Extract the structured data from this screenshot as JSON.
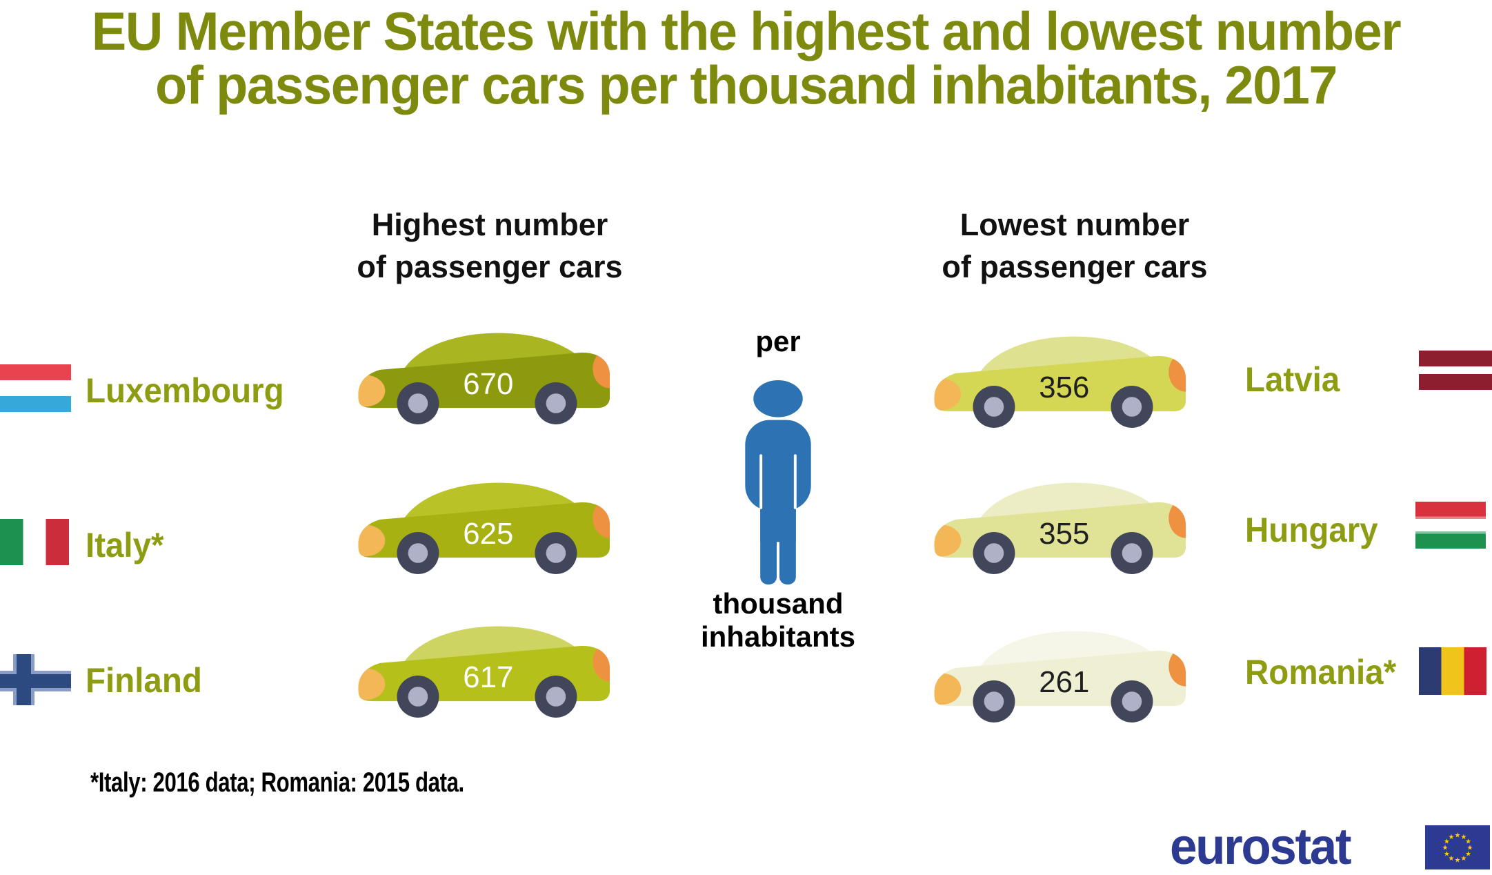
{
  "title": {
    "lines": [
      "EU Member States with the highest and lowest number",
      "of passenger cars per thousand inhabitants, 2017"
    ],
    "color": "#7d8a0e"
  },
  "columns": {
    "highest": {
      "heading_lines": [
        "Highest number",
        "of passenger cars"
      ]
    },
    "lowest": {
      "heading_lines": [
        "Lowest number",
        "of passenger cars"
      ]
    }
  },
  "center": {
    "top_label": "per",
    "bottom_lines": [
      "thousand",
      "inhabitants"
    ],
    "person_color": "#2d72b2"
  },
  "car_style": {
    "wheel": "#41465b",
    "hub": "#aeb1c7",
    "front_light": "#f4b757",
    "rear_light": "#ee9140"
  },
  "highest_countries": [
    {
      "name": "Luxembourg",
      "label": "Luxembourg",
      "value": "670",
      "car": {
        "body": "#8d9a0e",
        "roof": "#a9b521",
        "number_color": "#ffffff"
      },
      "flag": {
        "type": "h",
        "stripes": [
          "#e8434e",
          "#ffffff",
          "#37a8da"
        ],
        "weights": [
          1,
          1,
          1
        ]
      }
    },
    {
      "name": "Italy",
      "label": "Italy*",
      "value": "625",
      "car": {
        "body": "#a7b112",
        "roof": "#b9c226",
        "number_color": "#ffffff"
      },
      "flag": {
        "type": "v",
        "stripes": [
          "#1d9150",
          "#ffffff",
          "#cc2d3b"
        ],
        "weights": [
          1,
          1,
          1
        ]
      }
    },
    {
      "name": "Finland",
      "label": "Finland",
      "value": "617",
      "car": {
        "body": "#b6c01a",
        "roof": "#cdd462",
        "number_color": "#ffffff"
      },
      "flag": {
        "type": "cross",
        "field": "#ffffff",
        "cross": "#2c4a80",
        "shadow": "#8b9cc7"
      }
    }
  ],
  "lowest_countries": [
    {
      "name": "Latvia",
      "label": "Latvia",
      "value": "356",
      "car": {
        "body": "#d3d754",
        "roof": "#dee18f",
        "number_color": "#1f1f1f"
      },
      "flag": {
        "type": "h",
        "stripes": [
          "#8c1e2f",
          "#ffffff",
          "#8c1e2f"
        ],
        "weights": [
          2,
          1,
          2
        ]
      }
    },
    {
      "name": "Hungary",
      "label": "Hungary",
      "value": "355",
      "car": {
        "body": "#e0e295",
        "roof": "#ecedc4",
        "number_color": "#1f1f1f"
      },
      "flag": {
        "type": "h",
        "stripes": [
          "#d8323e",
          "#ea8287",
          "#ffffff",
          "#7fc6a2",
          "#1d9150"
        ],
        "weights": [
          30,
          5,
          25,
          5,
          30
        ]
      }
    },
    {
      "name": "Romania",
      "label": "Romania*",
      "value": "261",
      "car": {
        "body": "#eff0d3",
        "roof": "#f6f6e8",
        "number_color": "#1f1f1f"
      },
      "flag": {
        "type": "v",
        "stripes": [
          "#2c3b72",
          "#f0c41a",
          "#ce2030"
        ],
        "weights": [
          1,
          1,
          1
        ]
      }
    }
  ],
  "footnote": "*Italy: 2016 data; Romania: 2015 data.",
  "logo": {
    "text": "eurostat",
    "color": "#2c3a92",
    "flag_bg": "#2c3a92",
    "star_color": "#ffcc00"
  },
  "chart_data": {
    "type": "bar",
    "title": "EU Member States with the highest and lowest number of passenger cars per thousand inhabitants, 2017",
    "unit": "passenger cars per thousand inhabitants",
    "categories": [
      "Luxembourg",
      "Italy",
      "Finland",
      "Latvia",
      "Hungary",
      "Romania"
    ],
    "values": [
      670,
      625,
      617,
      356,
      355,
      261
    ],
    "series": [
      {
        "name": "Highest number of passenger cars",
        "categories": [
          "Luxembourg",
          "Italy",
          "Finland"
        ],
        "values": [
          670,
          625,
          617
        ]
      },
      {
        "name": "Lowest number of passenger cars",
        "categories": [
          "Latvia",
          "Hungary",
          "Romania"
        ],
        "values": [
          356,
          355,
          261
        ]
      }
    ],
    "annotations": [
      "*Italy: 2016 data; Romania: 2015 data."
    ]
  }
}
